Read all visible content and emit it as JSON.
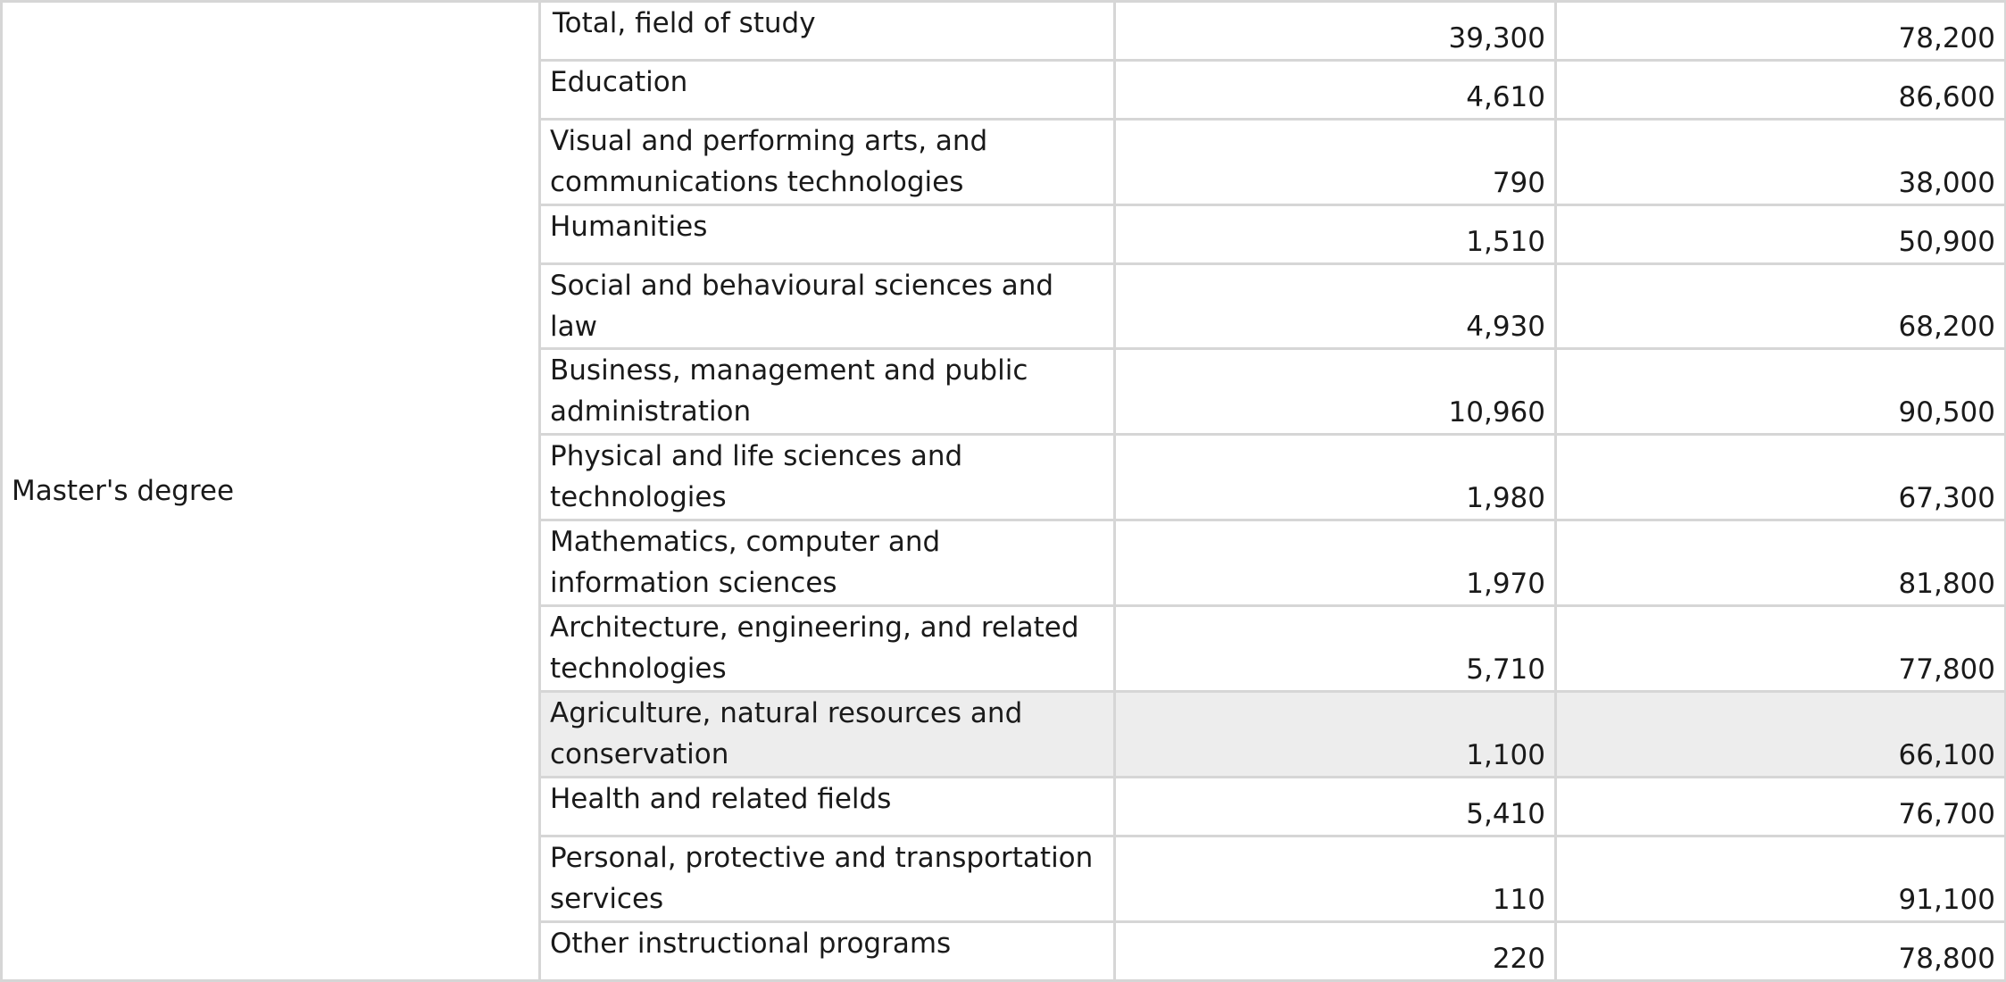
{
  "table": {
    "group_label": "Master's degree",
    "rows": [
      {
        "field": "Total, field of study",
        "col1": "39,300",
        "col2": "78,200"
      },
      {
        "field": "Education",
        "col1": "4,610",
        "col2": "86,600"
      },
      {
        "field": "Visual and performing arts, and communications technologies",
        "col1": "790",
        "col2": "38,000"
      },
      {
        "field": "Humanities",
        "col1": "1,510",
        "col2": "50,900"
      },
      {
        "field": "Social and behavioural sciences and law",
        "col1": "4,930",
        "col2": "68,200"
      },
      {
        "field": "Business, management and public administration",
        "col1": "10,960",
        "col2": "90,500"
      },
      {
        "field": "Physical and life sciences and technologies",
        "col1": "1,980",
        "col2": "67,300"
      },
      {
        "field": "Mathematics, computer and information sciences",
        "col1": "1,970",
        "col2": "81,800"
      },
      {
        "field": "Architecture, engineering, and related technologies",
        "col1": "5,710",
        "col2": "77,800"
      },
      {
        "field": "Agriculture, natural resources and conservation",
        "col1": "1,100",
        "col2": "66,100"
      },
      {
        "field": "Health and related fields",
        "col1": "5,410",
        "col2": "76,700"
      },
      {
        "field": "Personal, protective and transportation services",
        "col1": "110",
        "col2": "91,100"
      },
      {
        "field": "Other instructional programs",
        "col1": "220",
        "col2": "78,800"
      }
    ]
  }
}
